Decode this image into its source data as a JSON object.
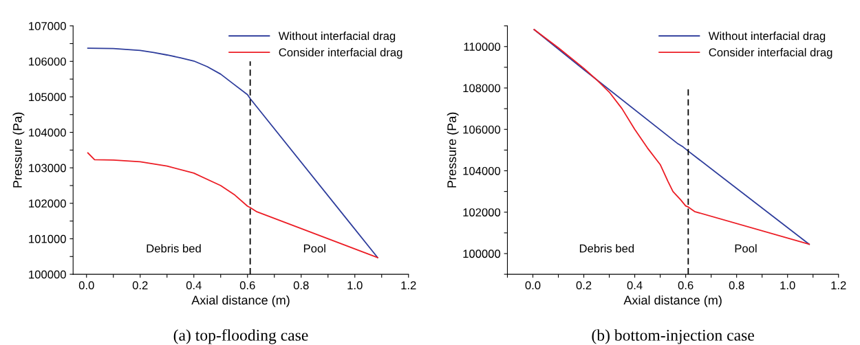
{
  "chart_data": [
    {
      "type": "line",
      "title": "(a) top-flooding case",
      "xlabel": "Axial distance (m)",
      "ylabel": "Pressure (Pa)",
      "legend": "top right",
      "grid": false,
      "xlim": [
        -0.05,
        1.2
      ],
      "ylim": [
        100000,
        107000
      ],
      "xticks": [
        {
          "value": 0,
          "label": "0.0"
        },
        {
          "value": 0.1,
          "label": null
        },
        0.2,
        {
          "value": 0.3,
          "label": null
        },
        0.4,
        {
          "value": 0.5,
          "label": null
        },
        0.6,
        {
          "value": 0.7,
          "label": null
        },
        0.8,
        {
          "value": 0.9,
          "label": null
        },
        {
          "value": 1,
          "label": "1.0"
        },
        {
          "value": 1.1,
          "label": null
        },
        1.2
      ],
      "yticks": [
        100000,
        {
          "value": 100500,
          "label": null
        },
        101000,
        {
          "value": 101500,
          "label": null
        },
        102000,
        {
          "value": 102500,
          "label": null
        },
        103000,
        {
          "value": 103500,
          "label": null
        },
        104000,
        {
          "value": 104500,
          "label": null
        },
        105000,
        {
          "value": 105500,
          "label": null
        },
        106000,
        {
          "value": 106500,
          "label": null
        },
        107000
      ],
      "series": [
        {
          "name": "Without interfacial drag",
          "color": "#2e3d9c",
          "x": [
            0.005,
            0.1,
            0.2,
            0.25,
            0.3,
            0.35,
            0.4,
            0.45,
            0.5,
            0.55,
            0.6,
            0.61,
            1.085
          ],
          "values": [
            106370,
            106360,
            106310,
            106250,
            106180,
            106100,
            106010,
            105850,
            105640,
            105350,
            105060,
            104950,
            100470
          ]
        },
        {
          "name": "Consider interfacial drag",
          "color": "#ec1c24",
          "x": [
            0.005,
            0.03,
            0.1,
            0.2,
            0.3,
            0.4,
            0.5,
            0.55,
            0.6,
            0.61,
            0.635,
            1.085
          ],
          "values": [
            103420,
            103230,
            103220,
            103170,
            103050,
            102850,
            102500,
            102250,
            101920,
            101880,
            101760,
            100470
          ]
        },
        {
          "color": "#000000",
          "line_style": "dashed",
          "x": [
            0.61,
            0.61
          ],
          "values": [
            100000,
            106000
          ]
        }
      ],
      "annotations": [
        "Debris bed",
        "Pool"
      ]
    },
    {
      "type": "line",
      "title": "(b) bottom-injection case",
      "xlabel": "Axial distance (m)",
      "ylabel": "Pressure (Pa)",
      "legend": "top right",
      "grid": false,
      "xlim": [
        -0.1,
        1.2
      ],
      "ylim": [
        99000,
        111000
      ],
      "xticks": [
        {
          "value": -0.1,
          "label": null
        },
        {
          "value": 0,
          "label": "0.0"
        },
        {
          "value": 0.1,
          "label": null
        },
        0.2,
        {
          "value": 0.3,
          "label": null
        },
        0.4,
        {
          "value": 0.5,
          "label": null
        },
        0.6,
        {
          "value": 0.7,
          "label": null
        },
        0.8,
        {
          "value": 0.9,
          "label": null
        },
        {
          "value": 1,
          "label": "1.0"
        },
        {
          "value": 1.1,
          "label": null
        },
        1.2
      ],
      "yticks": [
        {
          "value": 99000,
          "label": null
        },
        100000,
        {
          "value": 101000,
          "label": null
        },
        102000,
        {
          "value": 103000,
          "label": null
        },
        104000,
        {
          "value": 105000,
          "label": null
        },
        106000,
        {
          "value": 107000,
          "label": null
        },
        108000,
        {
          "value": 109000,
          "label": null
        },
        110000,
        {
          "value": 111000,
          "label": null
        }
      ],
      "series": [
        {
          "name": "Without interfacial drag",
          "color": "#2e3d9c",
          "x": [
            0.005,
            0.2,
            0.57,
            0.59,
            0.61,
            1.085
          ],
          "values": [
            110820,
            108890,
            105300,
            105150,
            104950,
            100450
          ]
        },
        {
          "name": "Consider interfacial drag",
          "color": "#ec1c24",
          "x": [
            0.005,
            0.1,
            0.2,
            0.25,
            0.3,
            0.35,
            0.4,
            0.45,
            0.5,
            0.53,
            0.55,
            0.58,
            0.6,
            0.61,
            0.635,
            1.085
          ],
          "values": [
            110820,
            109940,
            108950,
            108400,
            107800,
            107000,
            106000,
            105100,
            104300,
            103500,
            103000,
            102600,
            102300,
            102250,
            102030,
            100450
          ]
        },
        {
          "color": "#000000",
          "line_style": "dashed",
          "x": [
            0.61,
            0.61
          ],
          "values": [
            99000,
            108000
          ]
        }
      ],
      "annotations": [
        "Debris bed",
        "Pool"
      ]
    }
  ]
}
